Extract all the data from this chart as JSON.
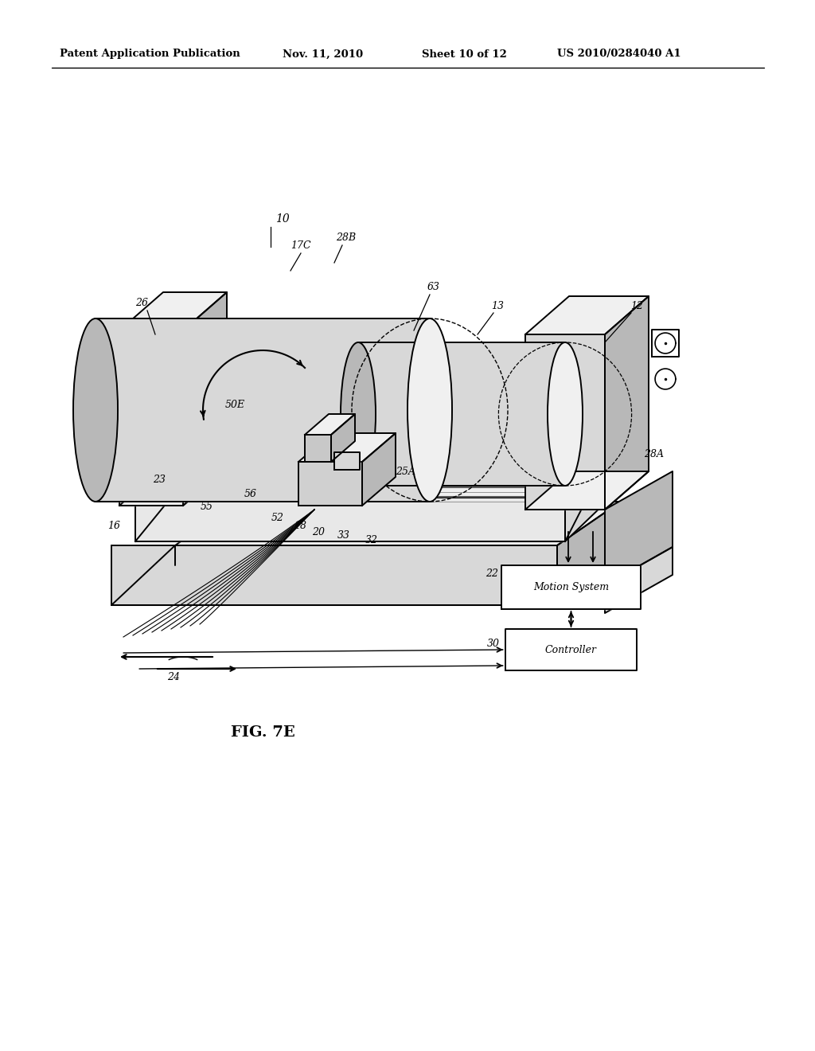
{
  "background_color": "#ffffff",
  "header_text": "Patent Application Publication",
  "header_date": "Nov. 11, 2010",
  "header_sheet": "Sheet 10 of 12",
  "header_patent": "US 2010/0284040 A1",
  "figure_label": "FIG. 7E",
  "line_color": "#000000",
  "text_color": "#000000",
  "fill_light": "#f0f0f0",
  "fill_mid": "#d8d8d8",
  "fill_dark": "#b8b8b8",
  "fill_white": "#ffffff"
}
